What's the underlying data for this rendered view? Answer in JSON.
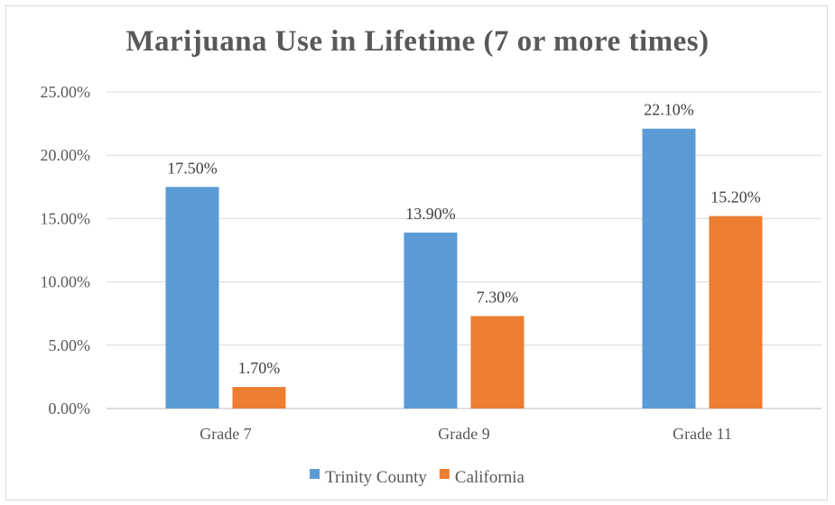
{
  "chart_data": {
    "type": "bar",
    "title": "Marijuana Use in Lifetime (7 or more times)",
    "categories": [
      "Grade 7",
      "Grade 9",
      "Grade 11"
    ],
    "series": [
      {
        "name": "Trinity County",
        "color": "#5b9bd5",
        "values": [
          17.5,
          13.9,
          22.1
        ],
        "labels": [
          "17.50%",
          "13.90%",
          "22.10%"
        ]
      },
      {
        "name": "California",
        "color": "#ed7d31",
        "values": [
          1.7,
          7.3,
          15.2
        ],
        "labels": [
          "1.70%",
          "7.30%",
          "15.20%"
        ]
      }
    ],
    "yticks": [
      "0.00%",
      "5.00%",
      "10.00%",
      "15.00%",
      "20.00%",
      "25.00%"
    ],
    "ylim": [
      0,
      25
    ],
    "grid": true,
    "legend": "bottom",
    "xlabel": "",
    "ylabel": ""
  }
}
